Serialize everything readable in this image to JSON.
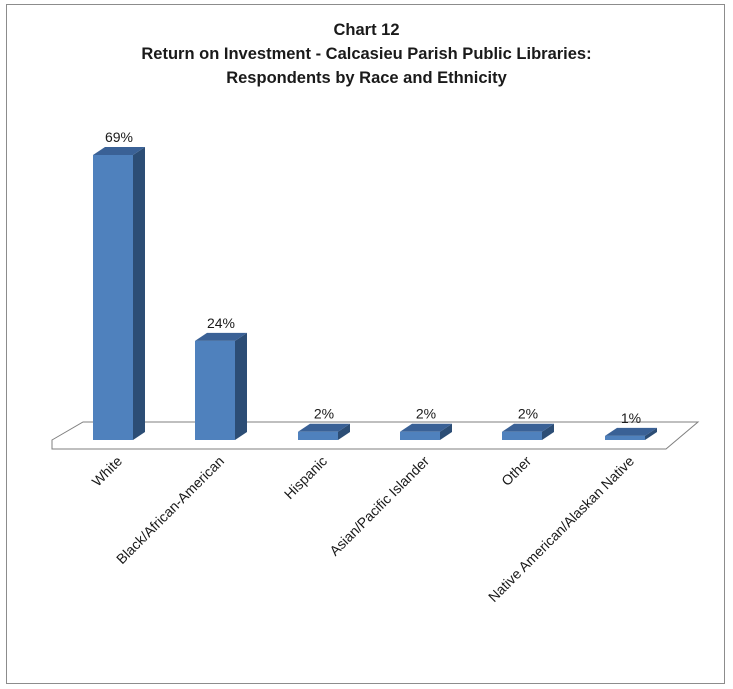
{
  "chart_data": {
    "type": "bar",
    "title": "Chart 12",
    "subtitle_lines": [
      "Return on Investment - Calcasieu Parish Public Libraries:",
      "Respondents by Race and Ethnicity"
    ],
    "categories": [
      "White",
      "Black/African-American",
      "Hispanic",
      "Asian/Pacific Islander",
      "Other",
      "Native American/Alaskan Native"
    ],
    "values": [
      69,
      24,
      2,
      2,
      2,
      1
    ],
    "data_labels": [
      "69%",
      "24%",
      "2%",
      "2%",
      "2%",
      "1%"
    ],
    "ylim": [
      0,
      70
    ],
    "unit": "%",
    "grid": false,
    "legend": "none",
    "style": "3d-column",
    "colors": {
      "bar_front": "#4f81bd",
      "bar_side": "#2c4d75",
      "bar_top": "#3a6196",
      "floor_line": "#7f7f7f"
    }
  }
}
